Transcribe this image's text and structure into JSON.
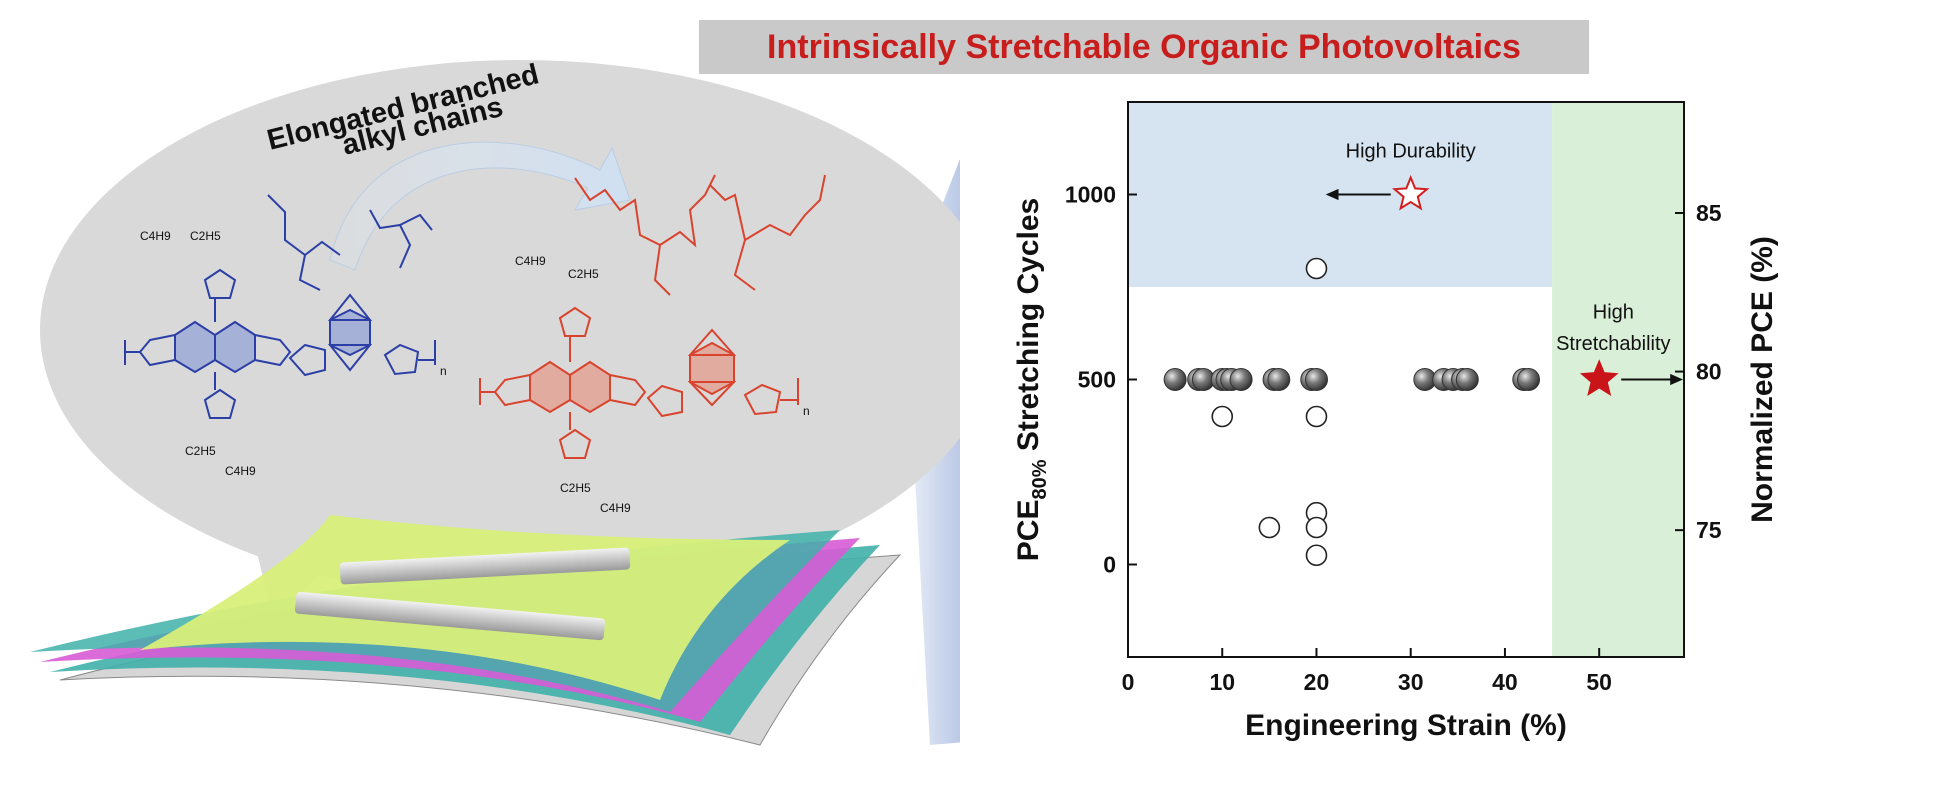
{
  "banner": {
    "title": "Intrinsically Stretchable Organic Photovoltaics"
  },
  "illustration": {
    "callout_line1": "Elongated branched",
    "callout_line2": "alkyl chains",
    "polymer_left": {
      "side_chain_a": "C4H9",
      "side_chain_b": "C2H5",
      "end_label": "n",
      "color": "#2b3fa6"
    },
    "polymer_right": {
      "side_chain_a": "C4H9",
      "side_chain_b": "C2H5",
      "end_label": "n",
      "color": "#d9442f"
    },
    "layer_colors": [
      "#d6d6d6",
      "#3fb0a9",
      "#d85bd6",
      "#3fb0a9",
      "#d8ef7a"
    ]
  },
  "chart_data": {
    "type": "scatter",
    "xlabel": "Engineering Strain (%)",
    "ylabel_left": "PCE80% Stretching Cycles",
    "ylabel_left_parts": {
      "main": "PCE",
      "sub": "80%",
      "rest": " Stretching Cycles"
    },
    "ylabel_right": "Normalized PCE (%)",
    "xlim": [
      0,
      59
    ],
    "ylim_left": [
      -250,
      1250
    ],
    "ylim_right": [
      71,
      88.5
    ],
    "xticks": [
      0,
      10,
      20,
      30,
      40,
      50
    ],
    "yticks_left": [
      0,
      500,
      1000
    ],
    "yticks_right": [
      75,
      80,
      85
    ],
    "regions": [
      {
        "name": "high-durability-region",
        "x": [
          0,
          45
        ],
        "y": [
          750,
          1250
        ],
        "color": "#d6e4f1"
      },
      {
        "name": "high-stretchability-region",
        "x": [
          45,
          59
        ],
        "y": [
          -250,
          1250
        ],
        "color": "#d9efd8"
      }
    ],
    "series": [
      {
        "marker": "filled-sphere",
        "color": "#555555",
        "x": [
          5,
          7.5,
          8,
          10,
          10.5,
          11,
          12,
          15.5,
          16,
          19.5,
          20,
          31.5,
          33.5,
          34.5,
          35.5,
          36,
          42,
          42.5
        ],
        "y": [
          500,
          500,
          500,
          500,
          500,
          500,
          500,
          500,
          500,
          500,
          500,
          500,
          500,
          500,
          500,
          500,
          500,
          500
        ]
      },
      {
        "marker": "open-circle",
        "color": "#222222",
        "x": [
          10,
          15,
          20,
          20,
          20,
          20,
          20
        ],
        "y": [
          400,
          100,
          800,
          400,
          140,
          100,
          25
        ]
      }
    ],
    "annotations": [
      {
        "text": "High Durability",
        "x": 30,
        "y": 1000,
        "marker": "open-star",
        "color": "#d11f1f",
        "arrow": "left"
      },
      {
        "text_line1": "High",
        "text_line2": "Stretchability",
        "x": 50,
        "y": 500,
        "marker": "filled-star",
        "color": "#c9151a",
        "arrow": "right"
      }
    ]
  }
}
